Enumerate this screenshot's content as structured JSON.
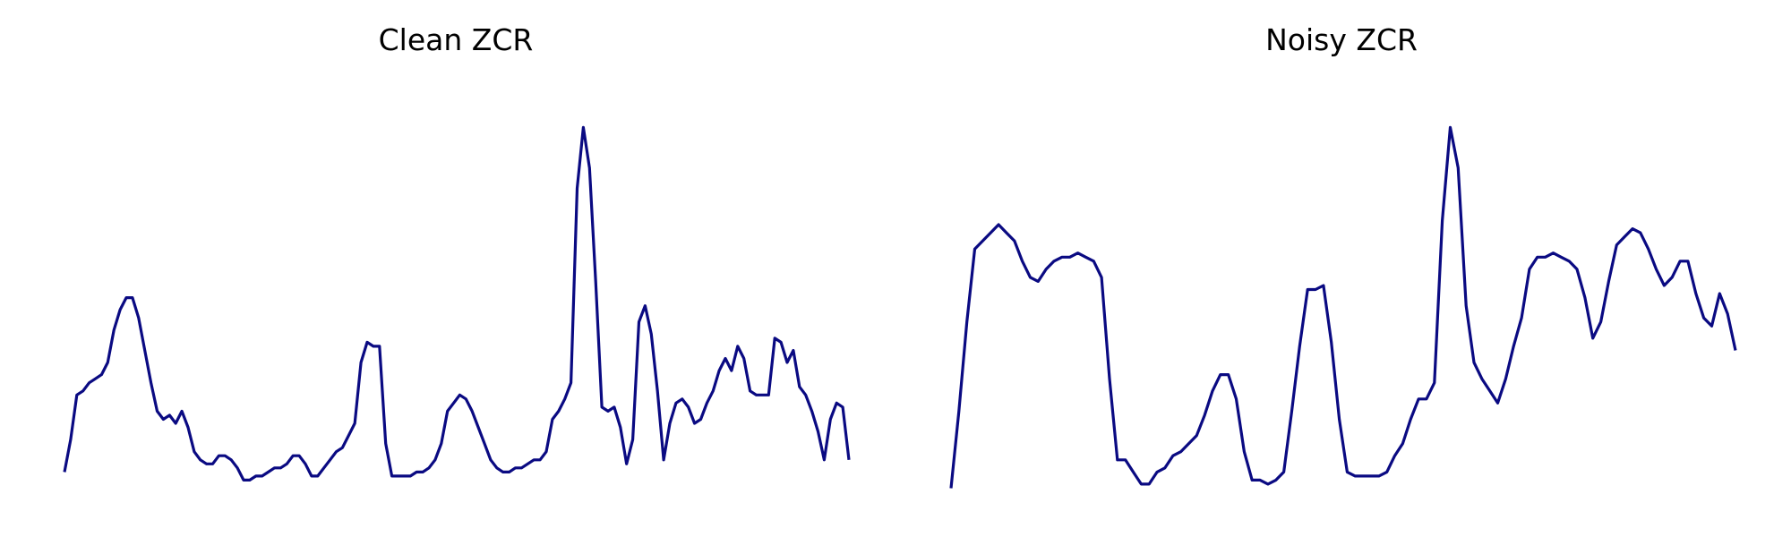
{
  "line_color": "#0a0a82",
  "chart_data": [
    {
      "type": "line",
      "title": "Clean ZCR",
      "xlabel": "",
      "ylabel": "",
      "grid": false,
      "axes_visible": false,
      "frame_start": 0,
      "ylim": [
        0.0,
        1.0
      ],
      "series": [
        {
          "values": [
            0.05,
            0.13,
            0.24,
            0.25,
            0.27,
            0.28,
            0.29,
            0.32,
            0.4,
            0.45,
            0.48,
            0.48,
            0.43,
            0.35,
            0.27,
            0.2,
            0.18,
            0.19,
            0.17,
            0.2,
            0.16,
            0.1,
            0.08,
            0.07,
            0.07,
            0.09,
            0.09,
            0.08,
            0.06,
            0.03,
            0.03,
            0.04,
            0.04,
            0.05,
            0.06,
            0.06,
            0.07,
            0.09,
            0.09,
            0.07,
            0.04,
            0.04,
            0.06,
            0.08,
            0.1,
            0.11,
            0.14,
            0.17,
            0.32,
            0.37,
            0.36,
            0.36,
            0.12,
            0.04,
            0.04,
            0.04,
            0.04,
            0.05,
            0.05,
            0.06,
            0.08,
            0.12,
            0.2,
            0.22,
            0.24,
            0.23,
            0.2,
            0.16,
            0.12,
            0.08,
            0.06,
            0.05,
            0.05,
            0.06,
            0.06,
            0.07,
            0.08,
            0.08,
            0.1,
            0.18,
            0.2,
            0.23,
            0.27,
            0.75,
            0.9,
            0.8,
            0.52,
            0.21,
            0.2,
            0.21,
            0.16,
            0.07,
            0.13,
            0.42,
            0.46,
            0.39,
            0.25,
            0.08,
            0.17,
            0.22,
            0.23,
            0.21,
            0.17,
            0.18,
            0.22,
            0.25,
            0.3,
            0.33,
            0.3,
            0.36,
            0.33,
            0.25,
            0.24,
            0.24,
            0.24,
            0.38,
            0.37,
            0.32,
            0.35,
            0.26,
            0.24,
            0.2,
            0.15,
            0.08,
            0.18,
            0.22,
            0.21,
            0.08
          ]
        }
      ]
    },
    {
      "type": "line",
      "title": "Noisy ZCR",
      "xlabel": "",
      "ylabel": "",
      "grid": false,
      "axes_visible": false,
      "frame_start": 0,
      "ylim": [
        0.0,
        1.0
      ],
      "series": [
        {
          "values": [
            0.01,
            0.2,
            0.42,
            0.6,
            0.62,
            0.64,
            0.66,
            0.64,
            0.62,
            0.57,
            0.53,
            0.52,
            0.55,
            0.57,
            0.58,
            0.58,
            0.59,
            0.58,
            0.57,
            0.53,
            0.28,
            0.08,
            0.08,
            0.05,
            0.02,
            0.02,
            0.05,
            0.06,
            0.09,
            0.1,
            0.12,
            0.14,
            0.19,
            0.25,
            0.29,
            0.29,
            0.23,
            0.1,
            0.03,
            0.03,
            0.02,
            0.03,
            0.05,
            0.2,
            0.36,
            0.5,
            0.5,
            0.51,
            0.37,
            0.18,
            0.05,
            0.04,
            0.04,
            0.04,
            0.04,
            0.05,
            0.09,
            0.12,
            0.18,
            0.23,
            0.23,
            0.27,
            0.67,
            0.9,
            0.8,
            0.46,
            0.32,
            0.28,
            0.25,
            0.22,
            0.28,
            0.36,
            0.43,
            0.55,
            0.58,
            0.58,
            0.59,
            0.58,
            0.57,
            0.55,
            0.48,
            0.38,
            0.42,
            0.52,
            0.61,
            0.63,
            0.65,
            0.64,
            0.6,
            0.55,
            0.51,
            0.53,
            0.57,
            0.57,
            0.49,
            0.43,
            0.41,
            0.49,
            0.44,
            0.35
          ]
        }
      ]
    }
  ]
}
